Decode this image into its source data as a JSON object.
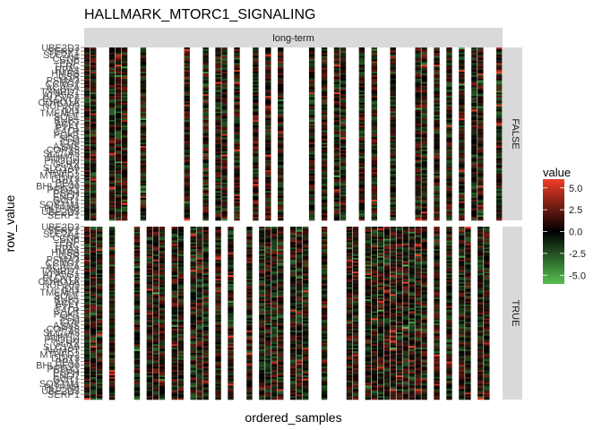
{
  "chart_data": {
    "type": "heatmap",
    "title": "HALLMARK_MTORC1_SIGNALING",
    "xlabel": "ordered_samples",
    "ylabel": "row_value",
    "column_facet": "long-term",
    "row_facets": [
      "FALSE",
      "TRUE"
    ],
    "legend": {
      "title": "value",
      "ticks": [
        "5.0",
        "2.5",
        "0.0",
        "-2.5",
        "-5.0"
      ],
      "tick_values": [
        5.0,
        2.5,
        0.0,
        -2.5,
        -5.0
      ],
      "range": [
        -6.0,
        6.0
      ],
      "colors": {
        "high": "#f03c28",
        "mid": "#000000",
        "low": "#55c050"
      },
      "placement": "right"
    },
    "y_tick_labels": [
      "UBE2D3",
      "SERP1",
      "SLC2A1",
      "CCNF",
      "PNP",
      "TFRC",
      "RPA1",
      "HMBS",
      "GSR",
      "PSMA3",
      "CCNG1",
      "ACACA",
      "TXNRD1",
      "ATP5G1",
      "ELOVL6",
      "CORO1A",
      "NUP205",
      "IDI1",
      "TMEM97",
      "SQLE",
      "BUB1",
      "ACLY",
      "ETF1",
      "CALR",
      "PGK1",
      "SCD",
      "CD9",
      "ASNS",
      "COPS5",
      "SLC7A5",
      "SHMT2",
      "PHGDH",
      "GLRX",
      "SLC1A5",
      "NAMPT",
      "MTHFD2",
      "DDIT3",
      "PPA1",
      "BHLHE40",
      "PRDX1",
      "PSPH",
      "ENO1",
      "GOT1",
      "SQSTM1",
      "PITPNB",
      "UBE2D3",
      "SERP1"
    ],
    "heatmap_note": "~40 sample columns in ordered order, split into FALSE/TRUE panels; cell values range approx -6 to 6",
    "false_panel_filled_columns": [
      0,
      1,
      4,
      5,
      6,
      9,
      16,
      19,
      21,
      22,
      24,
      27,
      29,
      31,
      36,
      38,
      40,
      41,
      44,
      46,
      49,
      53,
      54,
      56,
      58,
      60,
      62,
      63,
      66
    ],
    "true_panel_filled_columns": [
      0,
      1,
      2,
      4,
      8,
      10,
      11,
      12,
      14,
      15,
      17,
      18,
      19,
      21,
      23,
      26,
      28,
      29,
      30,
      31,
      33,
      34,
      35,
      38,
      42,
      43,
      45,
      46,
      47,
      48,
      49,
      50,
      51,
      52,
      53,
      54,
      56,
      58,
      60,
      61,
      63,
      64
    ]
  }
}
